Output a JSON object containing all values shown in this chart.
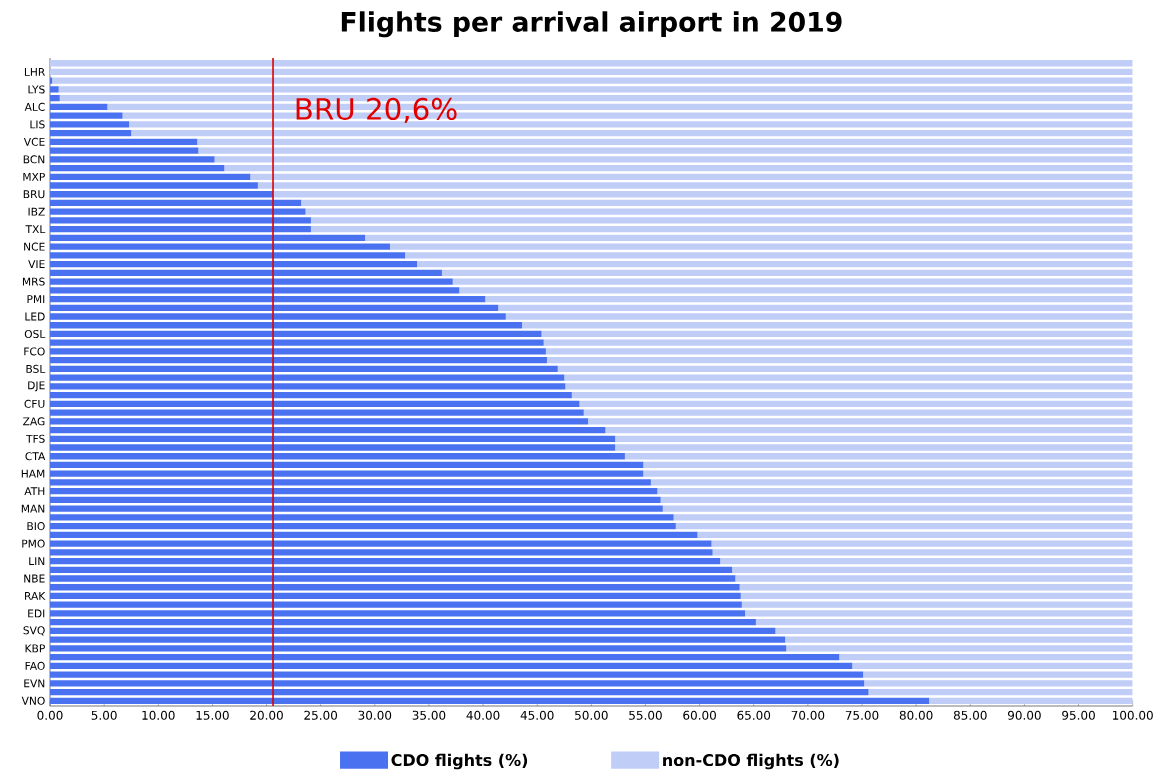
{
  "chart_data": {
    "type": "bar",
    "orientation": "horizontal",
    "stacked": true,
    "title": "Flights per arrival airport in 2019",
    "categories": [
      null,
      "LHR",
      null,
      "LYS",
      null,
      "ALC",
      null,
      "LIS",
      null,
      "VCE",
      null,
      "BCN",
      null,
      "MXP",
      null,
      "BRU",
      null,
      "IBZ",
      null,
      "TXL",
      null,
      "NCE",
      null,
      "VIE",
      null,
      "MRS",
      null,
      "PMI",
      null,
      "LED",
      null,
      "OSL",
      null,
      "FCO",
      null,
      "BSL",
      null,
      "DJE",
      null,
      "CFU",
      null,
      "ZAG",
      null,
      "TFS",
      null,
      "CTA",
      null,
      "HAM",
      null,
      "ATH",
      null,
      "MAN",
      null,
      "BIO",
      null,
      "PMO",
      null,
      "LIN",
      null,
      "NBE",
      null,
      "RAK",
      null,
      "EDI",
      null,
      "SVQ",
      null,
      "KBP",
      null,
      "FAO",
      null,
      "EVN",
      null,
      "VNO"
    ],
    "series": [
      {
        "name": "CDO flights (%)",
        "color": "#4a72f0",
        "values": [
          0,
          0,
          0.2,
          0.8,
          0.9,
          5.3,
          6.7,
          7.3,
          7.5,
          13.6,
          13.7,
          15.2,
          16.1,
          18.5,
          19.2,
          20.6,
          23.2,
          23.6,
          24.1,
          24.1,
          29.1,
          31.4,
          32.8,
          33.9,
          36.2,
          37.2,
          37.8,
          40.2,
          41.4,
          42.1,
          43.6,
          45.4,
          45.6,
          45.8,
          45.9,
          46.9,
          47.5,
          47.6,
          48.2,
          48.9,
          49.3,
          49.7,
          51.3,
          52.2,
          52.2,
          53.1,
          54.8,
          54.8,
          55.5,
          56.1,
          56.4,
          56.6,
          57.6,
          57.8,
          59.8,
          61.1,
          61.2,
          61.9,
          63.0,
          63.3,
          63.7,
          63.8,
          63.9,
          64.2,
          65.2,
          67.0,
          67.9,
          68.0,
          72.9,
          74.1,
          75.1,
          75.2,
          75.6,
          81.2
        ]
      },
      {
        "name": "non-CDO flights (%)",
        "color": "#bfcdf7",
        "values": [
          100,
          100,
          99.8,
          99.2,
          99.1,
          94.7,
          93.3,
          92.7,
          92.5,
          86.4,
          86.3,
          84.8,
          83.9,
          81.5,
          80.8,
          79.4,
          76.8,
          76.4,
          75.9,
          75.9,
          70.9,
          68.6,
          67.2,
          66.1,
          63.8,
          62.8,
          62.2,
          59.8,
          58.6,
          57.9,
          56.4,
          54.6,
          54.4,
          54.2,
          54.1,
          53.1,
          52.5,
          52.4,
          51.8,
          51.1,
          50.7,
          50.3,
          48.7,
          47.8,
          47.8,
          46.9,
          45.2,
          45.2,
          44.5,
          43.9,
          43.6,
          43.4,
          42.4,
          42.2,
          40.2,
          38.9,
          38.8,
          38.1,
          37.0,
          36.7,
          36.3,
          36.2,
          36.1,
          35.8,
          34.8,
          33.0,
          32.1,
          32.0,
          27.1,
          25.9,
          24.9,
          24.8,
          24.4,
          18.8
        ]
      }
    ],
    "xlim": [
      0,
      100
    ],
    "xticks": [
      {
        "value": 0,
        "label": "0.00"
      },
      {
        "value": 5,
        "label": "5.00"
      },
      {
        "value": 10,
        "label": "10.00"
      },
      {
        "value": 15,
        "label": "15.00"
      },
      {
        "value": 20,
        "label": "20.00"
      },
      {
        "value": 25,
        "label": "25.00"
      },
      {
        "value": 30,
        "label": "30.00"
      },
      {
        "value": 35,
        "label": "35.00"
      },
      {
        "value": 40,
        "label": "40.00"
      },
      {
        "value": 45,
        "label": "45.00"
      },
      {
        "value": 50,
        "label": "50.00"
      },
      {
        "value": 55,
        "label": "55.00"
      },
      {
        "value": 60,
        "label": "60.00"
      },
      {
        "value": 65,
        "label": "65.00"
      },
      {
        "value": 70,
        "label": "70.00"
      },
      {
        "value": 75,
        "label": "75.00"
      },
      {
        "value": 80,
        "label": "80.00"
      },
      {
        "value": 85,
        "label": "85.00"
      },
      {
        "value": 90,
        "label": "90.00"
      },
      {
        "value": 95,
        "label": "95.00"
      },
      {
        "value": 100,
        "label": "100.00"
      }
    ],
    "ref_lines": [
      {
        "axis": "x",
        "value": 20.6,
        "label": "BRU 20,6%",
        "color": "#e00000"
      }
    ],
    "legend": "bottom"
  }
}
